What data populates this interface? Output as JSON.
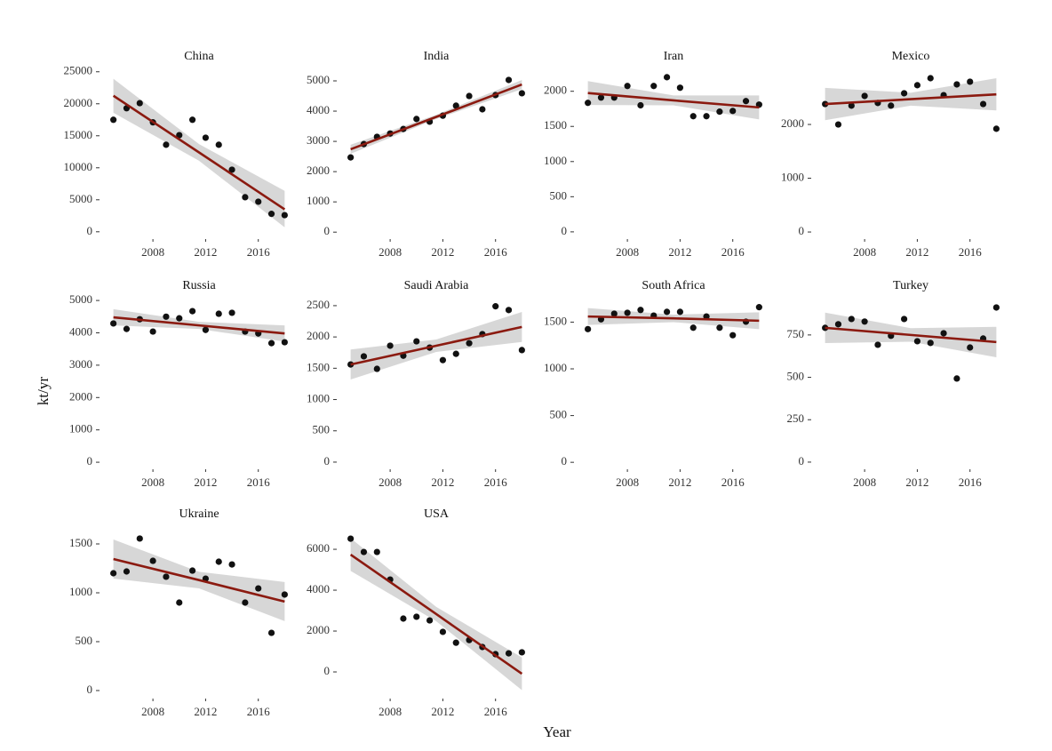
{
  "xlabel": "Year",
  "ylabel": "kt/yr",
  "chart_data": [
    {
      "type": "scatter",
      "title": "China",
      "x": [
        2005,
        2006,
        2007,
        2008,
        2009,
        2010,
        2011,
        2012,
        2013,
        2014,
        2015,
        2016,
        2017,
        2018
      ],
      "values": [
        17500,
        19300,
        20100,
        17100,
        13600,
        15100,
        17500,
        14700,
        13600,
        9700,
        5400,
        4700,
        2800,
        2600
      ],
      "color": "#111111",
      "fit": {
        "x": [
          2005,
          2011.5,
          2018
        ],
        "values": [
          21250,
          12400,
          3500
        ],
        "lower": [
          18600,
          11100,
          700
        ],
        "upper": [
          23900,
          13700,
          6400
        ],
        "color": "#8b1a10",
        "band_color": "#d3d3d3"
      },
      "xlim": [
        2004.35,
        2018.65
      ],
      "ylim": [
        -1000,
        25800
      ],
      "xticks": [
        2008,
        2012,
        2016
      ],
      "yticks": [
        0,
        5000,
        10000,
        15000,
        20000,
        25000
      ]
    },
    {
      "type": "scatter",
      "title": "India",
      "x": [
        2005,
        2006,
        2007,
        2008,
        2009,
        2010,
        2011,
        2012,
        2013,
        2014,
        2015,
        2016,
        2017,
        2018
      ],
      "values": [
        2470,
        2910,
        3150,
        3260,
        3410,
        3740,
        3650,
        3850,
        4180,
        4500,
        4060,
        4530,
        5030,
        4590
      ],
      "color": "#111111",
      "fit": {
        "x": [
          2005,
          2011.5,
          2018
        ],
        "values": [
          2740,
          3810,
          4880
        ],
        "lower": [
          2590,
          3740,
          4730
        ],
        "upper": [
          2890,
          3880,
          5030
        ],
        "color": "#8b1a10",
        "band_color": "#d3d3d3"
      },
      "xlim": [
        2004.35,
        2018.65
      ],
      "ylim": [
        -200,
        5470
      ],
      "xticks": [
        2008,
        2012,
        2016
      ],
      "yticks": [
        0,
        1000,
        2000,
        3000,
        4000,
        5000
      ]
    },
    {
      "type": "scatter",
      "title": "Iran",
      "x": [
        2005,
        2006,
        2007,
        2008,
        2009,
        2010,
        2011,
        2012,
        2013,
        2014,
        2015,
        2016,
        2017,
        2018
      ],
      "values": [
        1835,
        1910,
        1910,
        2075,
        1800,
        2075,
        2200,
        2050,
        1645,
        1645,
        1710,
        1720,
        1860,
        1810
      ],
      "color": "#111111",
      "fit": {
        "x": [
          2005,
          2011.5,
          2018
        ],
        "values": [
          1975,
          1870,
          1770
        ],
        "lower": [
          1805,
          1800,
          1600
        ],
        "upper": [
          2145,
          1940,
          1940
        ],
        "color": "#8b1a10",
        "band_color": "#d3d3d3"
      },
      "xlim": [
        2004.35,
        2018.65
      ],
      "ylim": [
        -90,
        2350
      ],
      "xticks": [
        2008,
        2012,
        2016
      ],
      "yticks": [
        0,
        500,
        1000,
        1500,
        2000
      ]
    },
    {
      "type": "scatter",
      "title": "Mexico",
      "x": [
        2005,
        2006,
        2007,
        2008,
        2009,
        2010,
        2011,
        2012,
        2013,
        2014,
        2015,
        2016,
        2017,
        2018
      ],
      "values": [
        2380,
        2000,
        2350,
        2530,
        2400,
        2350,
        2580,
        2730,
        2860,
        2545,
        2745,
        2795,
        2380,
        1920
      ],
      "color": "#111111",
      "fit": {
        "x": [
          2005,
          2011.5,
          2018
        ],
        "values": [
          2380,
          2470,
          2560
        ],
        "lower": [
          2080,
          2350,
          2260
        ],
        "upper": [
          2680,
          2590,
          2860
        ],
        "color": "#8b1a10",
        "band_color": "#d3d3d3"
      },
      "xlim": [
        2004.35,
        2018.65
      ],
      "ylim": [
        -115,
        3075
      ],
      "xticks": [
        2008,
        2012,
        2016
      ],
      "yticks": [
        0,
        1000,
        2000
      ]
    },
    {
      "type": "scatter",
      "title": "Russia",
      "x": [
        2005,
        2006,
        2007,
        2008,
        2009,
        2010,
        2011,
        2012,
        2013,
        2014,
        2015,
        2016,
        2017,
        2018
      ],
      "values": [
        4290,
        4120,
        4420,
        4040,
        4500,
        4450,
        4670,
        4090,
        4590,
        4620,
        4040,
        3980,
        3680,
        3710
      ],
      "color": "#111111",
      "fit": {
        "x": [
          2005,
          2011.5,
          2018
        ],
        "values": [
          4480,
          4230,
          3980
        ],
        "lower": [
          4230,
          4120,
          3730
        ],
        "upper": [
          4730,
          4340,
          4230
        ],
        "color": "#8b1a10",
        "band_color": "#d3d3d3"
      },
      "xlim": [
        2004.35,
        2018.65
      ],
      "ylim": [
        -190,
        5140
      ],
      "xticks": [
        2008,
        2012,
        2016
      ],
      "yticks": [
        0,
        1000,
        2000,
        3000,
        4000,
        5000
      ]
    },
    {
      "type": "scatter",
      "title": "Saudi Arabia",
      "x": [
        2005,
        2006,
        2007,
        2008,
        2009,
        2010,
        2011,
        2012,
        2013,
        2014,
        2015,
        2016,
        2017,
        2018
      ],
      "values": [
        1560,
        1690,
        1490,
        1860,
        1700,
        1930,
        1830,
        1630,
        1730,
        1900,
        2045,
        2490,
        2430,
        1790
      ],
      "color": "#111111",
      "fit": {
        "x": [
          2005,
          2011.5,
          2018
        ],
        "values": [
          1560,
          1860,
          2160
        ],
        "lower": [
          1320,
          1760,
          1920
        ],
        "upper": [
          1800,
          1960,
          2400
        ],
        "color": "#8b1a10",
        "band_color": "#d3d3d3"
      },
      "xlim": [
        2004.35,
        2018.65
      ],
      "ylim": [
        -100,
        2655
      ],
      "xticks": [
        2008,
        2012,
        2016
      ],
      "yticks": [
        0,
        500,
        1000,
        1500,
        2000,
        2500
      ]
    },
    {
      "type": "scatter",
      "title": "South Africa",
      "x": [
        2005,
        2006,
        2007,
        2008,
        2009,
        2010,
        2011,
        2012,
        2013,
        2014,
        2015,
        2016,
        2017,
        2018
      ],
      "values": [
        1425,
        1530,
        1590,
        1600,
        1630,
        1570,
        1610,
        1610,
        1440,
        1560,
        1440,
        1360,
        1505,
        1660
      ],
      "color": "#111111",
      "fit": {
        "x": [
          2005,
          2011.5,
          2018
        ],
        "values": [
          1560,
          1540,
          1515
        ],
        "lower": [
          1470,
          1500,
          1425
        ],
        "upper": [
          1650,
          1580,
          1605
        ],
        "color": "#8b1a10",
        "band_color": "#d3d3d3"
      },
      "xlim": [
        2004.35,
        2018.65
      ],
      "ylim": [
        -65,
        1780
      ],
      "xticks": [
        2008,
        2012,
        2016
      ],
      "yticks": [
        0,
        500,
        1000,
        1500
      ]
    },
    {
      "type": "scatter",
      "title": "Turkey",
      "x": [
        2005,
        2006,
        2007,
        2008,
        2009,
        2010,
        2011,
        2012,
        2013,
        2014,
        2015,
        2016,
        2017,
        2018
      ],
      "values": [
        792,
        813,
        844,
        829,
        692,
        745,
        844,
        713,
        703,
        760,
        493,
        676,
        729,
        912
      ],
      "color": "#111111",
      "fit": {
        "x": [
          2005,
          2011.5,
          2018
        ],
        "values": [
          792,
          750,
          708
        ],
        "lower": [
          702,
          710,
          618
        ],
        "upper": [
          882,
          790,
          798
        ],
        "color": "#8b1a10",
        "band_color": "#d3d3d3"
      },
      "xlim": [
        2004.35,
        2018.65
      ],
      "ylim": [
        -37,
        980
      ],
      "xticks": [
        2008,
        2012,
        2016
      ],
      "yticks": [
        0,
        250,
        500,
        750
      ]
    },
    {
      "type": "scatter",
      "title": "Ukraine",
      "x": [
        2005,
        2006,
        2007,
        2008,
        2009,
        2010,
        2011,
        2012,
        2013,
        2014,
        2015,
        2016,
        2017,
        2018
      ],
      "values": [
        1200,
        1218,
        1555,
        1327,
        1164,
        900,
        1227,
        1145,
        1318,
        1290,
        900,
        1045,
        590,
        982
      ],
      "color": "#111111",
      "fit": {
        "x": [
          2005,
          2011.5,
          2018
        ],
        "values": [
          1345,
          1130,
          910
        ],
        "lower": [
          1145,
          1045,
          710
        ],
        "upper": [
          1545,
          1215,
          1110
        ],
        "color": "#8b1a10",
        "band_color": "#d3d3d3"
      },
      "xlim": [
        2004.35,
        2018.65
      ],
      "ylim": [
        -73,
        1700
      ],
      "xticks": [
        2008,
        2012,
        2016
      ],
      "yticks": [
        0,
        500,
        1000,
        1500
      ]
    },
    {
      "type": "scatter",
      "title": "USA",
      "x": [
        2005,
        2006,
        2007,
        2008,
        2009,
        2010,
        2011,
        2012,
        2013,
        2014,
        2015,
        2016,
        2017,
        2018
      ],
      "values": [
        6520,
        5870,
        5870,
        4520,
        2610,
        2700,
        2520,
        1960,
        1430,
        1560,
        1220,
        870,
        910,
        960
      ],
      "color": "#111111",
      "fit": {
        "x": [
          2005,
          2011.5,
          2018
        ],
        "values": [
          5740,
          2830,
          -90
        ],
        "lower": [
          4940,
          2480,
          -890
        ],
        "upper": [
          6540,
          3180,
          710
        ],
        "color": "#8b1a10",
        "band_color": "#d3d3d3"
      },
      "xlim": [
        2004.35,
        2018.65
      ],
      "ylim": [
        -1260,
        7220
      ],
      "xticks": [
        2008,
        2012,
        2016
      ],
      "yticks": [
        0,
        2000,
        4000,
        6000
      ]
    }
  ]
}
